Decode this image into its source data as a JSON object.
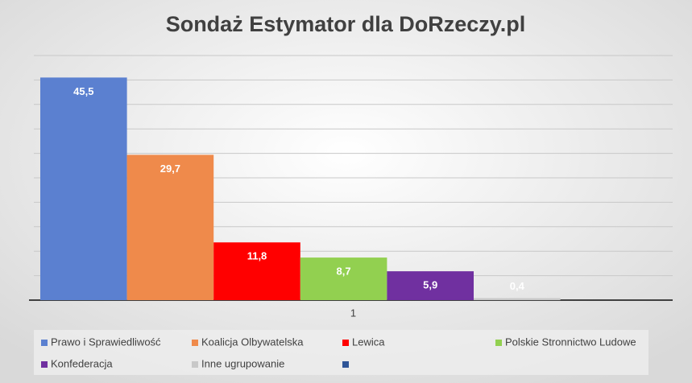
{
  "chart_data": {
    "type": "bar",
    "title": "Sondaż Estymator dla DoRzeczy.pl",
    "categories": [
      "1"
    ],
    "series": [
      {
        "name": "Prawo i Sprawiedliwość",
        "color": "#5b80d0",
        "values": [
          45.5
        ],
        "value_labels": [
          "45,5"
        ]
      },
      {
        "name": "Koalicja Olbywatelska",
        "color": "#ef8a4b",
        "values": [
          29.7
        ],
        "value_labels": [
          "29,7"
        ]
      },
      {
        "name": "Lewica",
        "color": "#ff0000",
        "values": [
          11.8
        ],
        "value_labels": [
          "11,8"
        ]
      },
      {
        "name": "Polskie Stronnictwo Ludowe",
        "color": "#92d050",
        "values": [
          8.7
        ],
        "value_labels": [
          "8,7"
        ]
      },
      {
        "name": "Konfederacja",
        "color": "#7030a0",
        "values": [
          5.9
        ],
        "value_labels": [
          "5,9"
        ]
      },
      {
        "name": "Inne ugrupowanie",
        "color": "#c8c8c8",
        "values": [
          0.4
        ],
        "value_labels": [
          "0,4"
        ]
      },
      {
        "name": null,
        "color": "#2f5597",
        "values": [
          null
        ],
        "value_labels": [
          null
        ]
      }
    ],
    "ylim": [
      0,
      50
    ],
    "yticks": [
      0,
      5,
      10,
      15,
      20,
      25,
      30,
      35,
      40,
      45,
      50
    ],
    "ytick_labels": false,
    "grid": true
  }
}
